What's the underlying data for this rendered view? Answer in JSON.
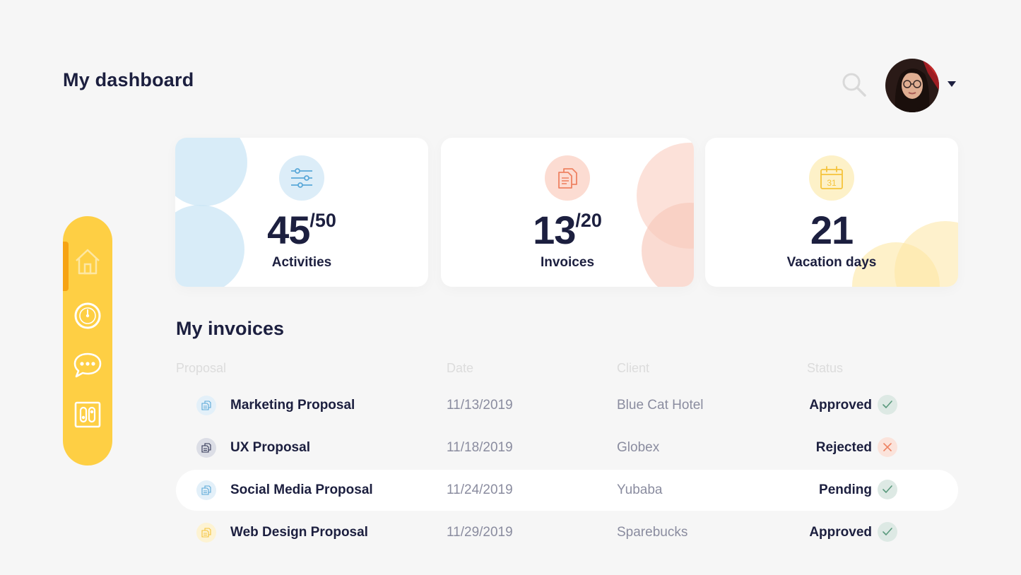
{
  "header": {
    "title": "My dashboard",
    "search_icon": "search-icon",
    "avatar_icon": "user-avatar",
    "caret_icon": "caret-down-icon"
  },
  "sidebar": {
    "color": "#fecf44",
    "active_color": "#f6a313",
    "items": [
      {
        "icon": "home-icon",
        "active": true
      },
      {
        "icon": "clock-icon",
        "active": false
      },
      {
        "icon": "chat-bubble-icon",
        "active": false
      },
      {
        "icon": "toggle-panel-icon",
        "active": false
      }
    ]
  },
  "stats": [
    {
      "value": "45",
      "total": "/50",
      "label": "Activities",
      "icon": "sliders-icon",
      "color": "#5aa8d8"
    },
    {
      "value": "13",
      "total": "/20",
      "label": "Invoices",
      "icon": "documents-icon",
      "color": "#ee8262"
    },
    {
      "value": "21",
      "total": "",
      "label": "Vacation days",
      "icon": "calendar-icon",
      "calendar_day": "31",
      "color": "#f5c33b"
    }
  ],
  "invoices": {
    "title": "My invoices",
    "columns": [
      "Proposal",
      "Date",
      "Client",
      "Status"
    ],
    "rows": [
      {
        "name": "Marketing Proposal",
        "date": "11/13/2019",
        "client": "Blue Cat Hotel",
        "status": "Approved",
        "status_icon": "check-icon",
        "doc_color": "#5aa8d8"
      },
      {
        "name": "UX Proposal",
        "date": "11/18/2019",
        "client": "Globex",
        "status": "Rejected",
        "status_icon": "close-icon",
        "doc_color": "#2d3150"
      },
      {
        "name": "Social Media Proposal",
        "date": "11/24/2019",
        "client": "Yubaba",
        "status": "Pending",
        "status_icon": "check-icon",
        "doc_color": "#5aa8d8"
      },
      {
        "name": "Web Design Proposal",
        "date": "11/29/2019",
        "client": "Sparebucks",
        "status": "Approved",
        "status_icon": "check-icon",
        "doc_color": "#f5c33b"
      }
    ]
  }
}
